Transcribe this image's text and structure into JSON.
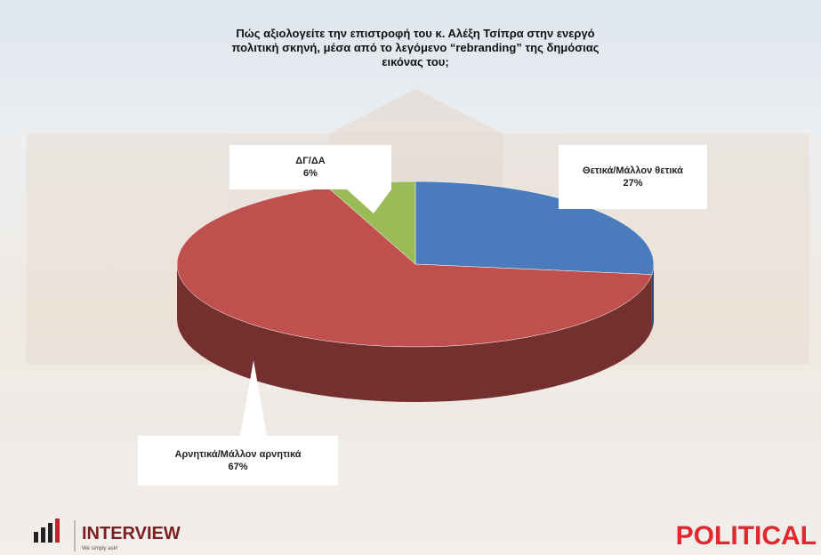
{
  "chart_data": {
    "type": "pie3d",
    "title": "Πώς αξιολογείτε την επιστροφή του κ. Αλέξη Τσίπρα στην ενεργό πολιτική σκηνή, μέσα από το λεγόμενο “rebranding” της δημόσιας εικόνας του;",
    "categories": [
      "Θετικά/Μάλλον θετικά",
      "Αρνητικά/Μάλλον αρνητικά",
      "ΔΓ/ΔΑ"
    ],
    "values": [
      27,
      67,
      6
    ],
    "value_labels": [
      "27%",
      "67%",
      "6%"
    ],
    "colors": [
      "#4a7bbd",
      "#c0504d",
      "#9bbb59"
    ]
  },
  "branding": {
    "left": "INTERVIEW",
    "tagline": "We simply ask!",
    "right": "POLITICAL"
  }
}
